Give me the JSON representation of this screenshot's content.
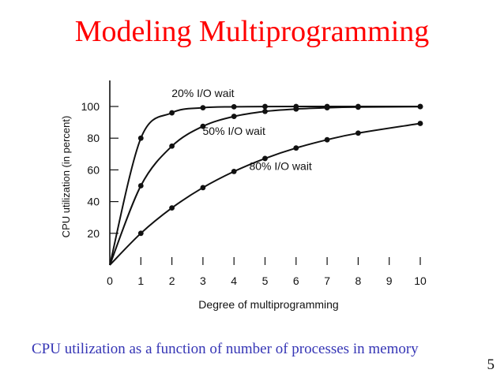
{
  "slide": {
    "title": "Modeling Multiprogramming",
    "caption": "CPU utilization as a function of number of processes in memory",
    "page_number": "5"
  },
  "colors": {
    "title": "#ff0000",
    "caption": "#3535b5",
    "chart_ink": "#111111"
  },
  "chart_data": {
    "type": "line",
    "xlabel": "Degree of multiprogramming",
    "ylabel": "CPU utilization (in percent)",
    "xlim": [
      0,
      10
    ],
    "ylim": [
      0,
      100
    ],
    "x_ticks": [
      "0",
      "1",
      "2",
      "3",
      "4",
      "5",
      "6",
      "7",
      "8",
      "9",
      "10"
    ],
    "y_ticks": [
      "20",
      "40",
      "60",
      "80",
      "100"
    ],
    "grid": false,
    "legend": "inline curve labels",
    "series": [
      {
        "name": "20% I/O wait",
        "x": [
          0,
          1,
          2,
          3,
          4,
          5,
          6,
          7,
          8,
          10
        ],
        "y": [
          0,
          80,
          96,
          99.2,
          99.8,
          99.97,
          100,
          100,
          100,
          100
        ]
      },
      {
        "name": "50% I/O wait",
        "x": [
          0,
          1,
          2,
          3,
          4,
          5,
          6,
          7,
          8,
          10
        ],
        "y": [
          0,
          50,
          75,
          87.5,
          93.75,
          96.9,
          98.4,
          99.2,
          99.6,
          99.9
        ]
      },
      {
        "name": "80% I/O wait",
        "x": [
          0,
          1,
          2,
          3,
          4,
          5,
          6,
          7,
          8,
          10
        ],
        "y": [
          0,
          20,
          36,
          48.8,
          59,
          67.2,
          73.8,
          79,
          83.2,
          89.3
        ]
      }
    ]
  }
}
